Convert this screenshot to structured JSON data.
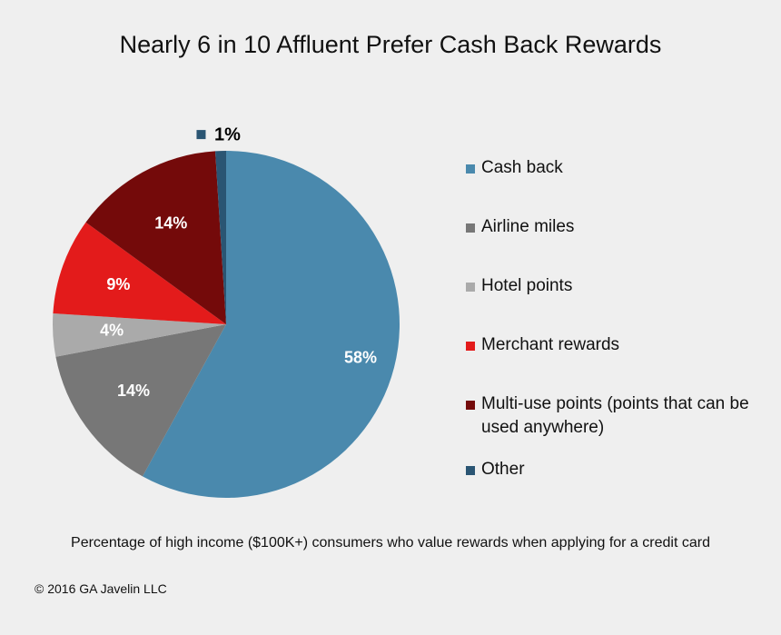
{
  "chart_data": {
    "type": "pie",
    "title": "Nearly 6 in 10 Affluent Prefer Cash Back Rewards",
    "slices": [
      {
        "label": "Cash back",
        "value": 58,
        "display": "58%",
        "color": "#4a89ad"
      },
      {
        "label": "Airline miles",
        "value": 14,
        "display": "14%",
        "color": "#777777"
      },
      {
        "label": "Hotel points",
        "value": 4,
        "display": "4%",
        "color": "#aaaaaa"
      },
      {
        "label": "Merchant rewards",
        "value": 9,
        "display": "9%",
        "color": "#e31b1b"
      },
      {
        "label": "Multi-use points (points that can be used anywhere)",
        "value": 14,
        "display": "14%",
        "color": "#740a0a"
      },
      {
        "label": "Other",
        "value": 1,
        "display": "1%",
        "color": "#2a5573"
      }
    ],
    "legend_position": "right"
  },
  "caption": "Percentage of high income ($100K+) consumers who value rewards when applying for a credit card",
  "copyright": "© 2016 GA Javelin LLC"
}
